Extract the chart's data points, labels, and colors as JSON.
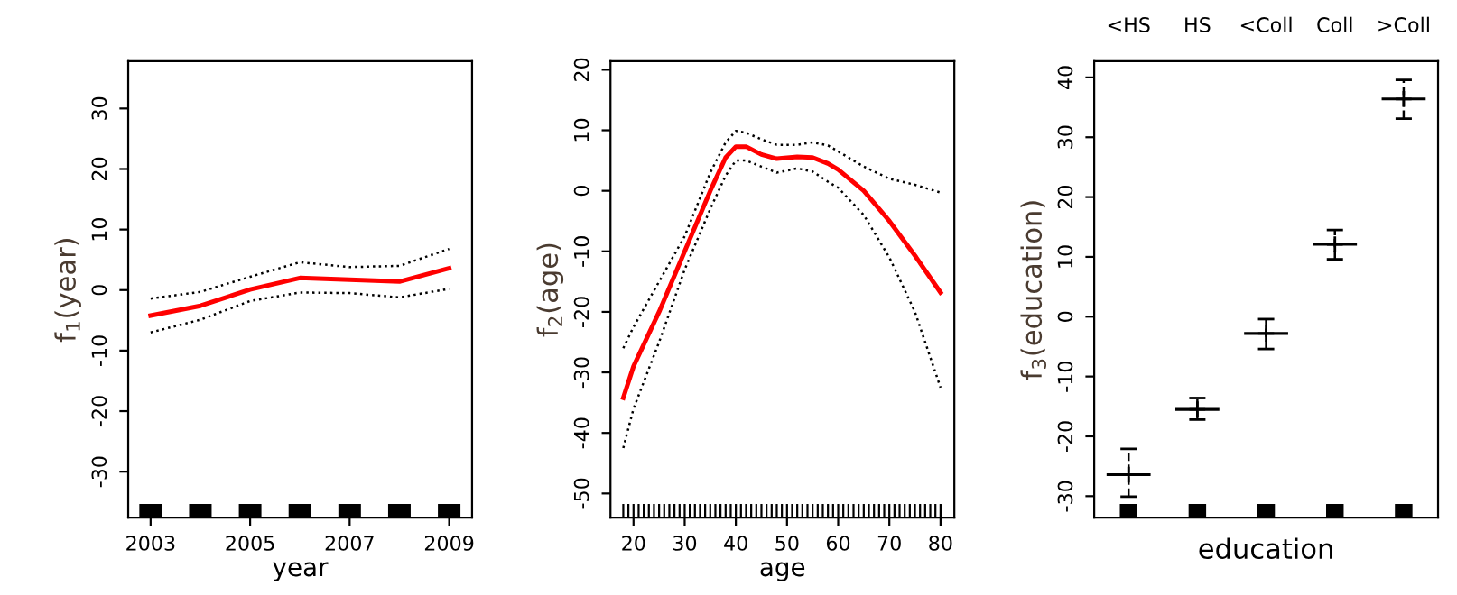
{
  "chart_data": [
    {
      "type": "line",
      "xlabel": "year",
      "ylabel": "f$_{1}$(year)",
      "x": [
        2003,
        2004,
        2005,
        2006,
        2007,
        2008,
        2009
      ],
      "xlim": [
        2002.55,
        2009.46
      ],
      "xticks": [
        2003,
        2005,
        2007,
        2009
      ],
      "ylim": [
        -37.6,
        37.8
      ],
      "yticks": [
        -30,
        -20,
        -10,
        0,
        10,
        20,
        30
      ],
      "series": [
        {
          "color": "#ff0000",
          "line_style": "solid",
          "values": [
            -4.2,
            -2.6,
            0.1,
            2.0,
            1.7,
            1.4,
            3.6
          ]
        },
        {
          "color": "#000000",
          "line_style": "dotted",
          "values": [
            -1.4,
            -0.3,
            2.2,
            4.6,
            3.8,
            4.0,
            6.8
          ]
        },
        {
          "color": "#000000",
          "line_style": "dotted",
          "values": [
            -7.0,
            -4.9,
            -1.8,
            -0.4,
            -0.5,
            -1.2,
            0.2
          ]
        }
      ]
    },
    {
      "type": "line",
      "xlabel": "age",
      "ylabel": "f$_{2}$(age)",
      "x": [
        18,
        20,
        25,
        30,
        35,
        38,
        40,
        42,
        45,
        48,
        52,
        55,
        58,
        60,
        65,
        70,
        75,
        80
      ],
      "xlim": [
        15.5,
        82.7
      ],
      "xticks": [
        20,
        30,
        40,
        50,
        60,
        70,
        80
      ],
      "ylim": [
        -54.0,
        21.4
      ],
      "yticks": [
        -50,
        -40,
        -30,
        -20,
        -10,
        0,
        10,
        20
      ],
      "series": [
        {
          "color": "#ff0000",
          "line_style": "solid",
          "values": [
            -34.2,
            -29,
            -20,
            -10,
            0,
            5.5,
            7.3,
            7.3,
            6.0,
            5.3,
            5.6,
            5.5,
            4.5,
            3.5,
            0,
            -5,
            -10.7,
            -16.8
          ]
        },
        {
          "color": "#000000",
          "line_style": "dotted",
          "values": [
            -26,
            -22.5,
            -15,
            -7.5,
            3,
            8,
            9.9,
            9.6,
            8.5,
            7.6,
            7.6,
            8,
            7.5,
            6.5,
            4,
            2,
            1,
            -0.3
          ]
        },
        {
          "color": "#000000",
          "line_style": "dotted",
          "values": [
            -42.5,
            -36,
            -25,
            -13,
            -3,
            2.5,
            5,
            5,
            4,
            3,
            3.7,
            3.2,
            1.5,
            0.5,
            -4,
            -11,
            -20,
            -32.5
          ]
        }
      ]
    },
    {
      "type": "scatter",
      "xlabel": "education",
      "ylabel": "f$_{3}$(education)",
      "categories": [
        "<HS",
        "HS",
        "<Coll",
        "Coll",
        ">Coll"
      ],
      "ylim": [
        -33.6,
        42.7
      ],
      "yticks": [
        -30,
        -20,
        -10,
        0,
        10,
        20,
        30,
        40
      ],
      "marker": "cross",
      "series": [
        {
          "color": "#000000",
          "values": [
            -26.4,
            -15.5,
            -2.8,
            12.1,
            36.4
          ],
          "errors": [
            [
              -30.1,
              -22.1
            ],
            [
              -17.2,
              -13.6
            ],
            [
              -5.4,
              -0.4
            ],
            [
              9.6,
              14.5
            ],
            [
              33.1,
              39.6
            ]
          ]
        }
      ]
    }
  ]
}
